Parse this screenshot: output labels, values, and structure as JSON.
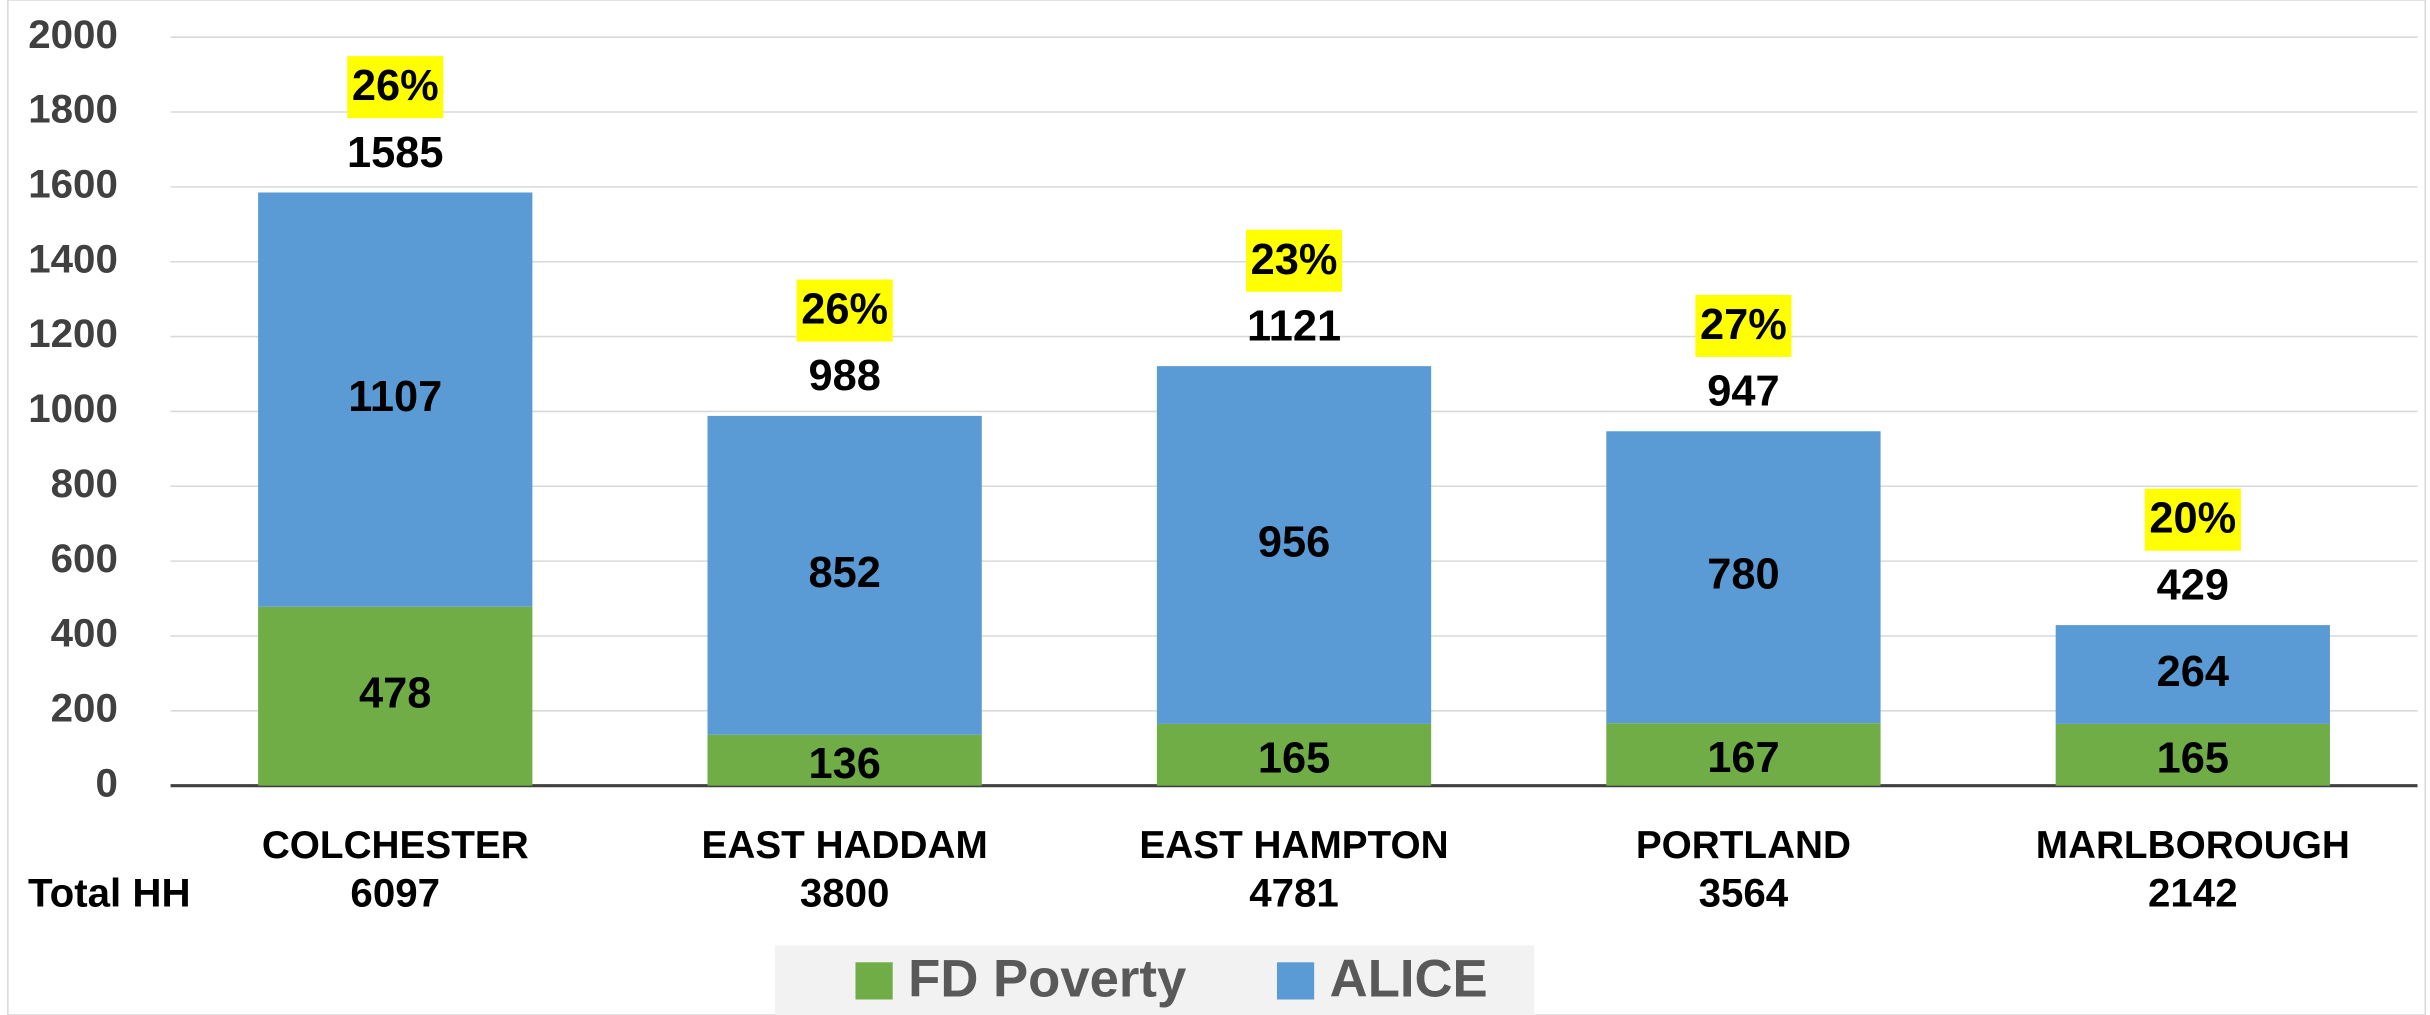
{
  "chart_data": {
    "type": "stacked_bar",
    "categories": [
      "COLCHESTER",
      "EAST HADDAM",
      "EAST HAMPTON",
      "PORTLAND",
      "MARLBOROUGH"
    ],
    "series": [
      {
        "name": "FD Poverty",
        "color": "#70ad47",
        "values": [
          478,
          136,
          165,
          167,
          165
        ]
      },
      {
        "name": "ALICE",
        "color": "#5b9bd5",
        "values": [
          1107,
          852,
          956,
          780,
          264
        ]
      }
    ],
    "totals": {
      "values": [
        1585,
        988,
        1121,
        947,
        429
      ]
    },
    "percentages": {
      "values": [
        26,
        26,
        23,
        27,
        20
      ],
      "value_labels": [
        "26%",
        "26%",
        "23%",
        "27%",
        "20%"
      ],
      "highlight": "#ffff00"
    },
    "total_hh": {
      "label": "Total HH",
      "values": [
        6097,
        3800,
        4781,
        3564,
        2142
      ]
    },
    "ylim": [
      0,
      2000
    ],
    "yticks": [
      0,
      200,
      400,
      600,
      800,
      1000,
      1200,
      1400,
      1600,
      1800,
      2000
    ],
    "grid": true,
    "legend": "bottom"
  }
}
